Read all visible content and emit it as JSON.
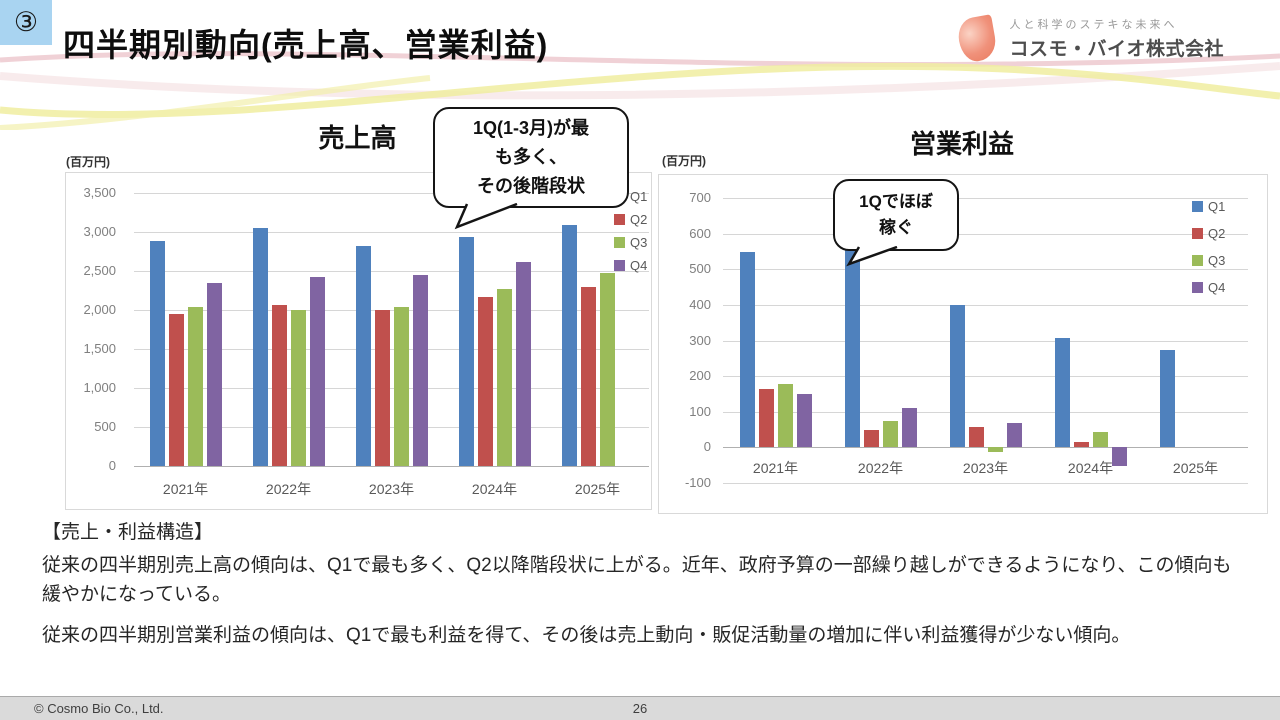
{
  "slide": {
    "badge": "③",
    "title": "四半期別動向(売上高、営業利益)"
  },
  "logo": {
    "tagline": "人と科学のステキな未来へ",
    "company": "コスモ・バイオ株式会社"
  },
  "chart_data": [
    {
      "type": "bar",
      "title": "売上高",
      "unit_label": "(百万円)",
      "categories": [
        "2021年",
        "2022年",
        "2023年",
        "2024年",
        "2025年"
      ],
      "series": [
        {
          "name": "Q1",
          "color": "#4F81BD",
          "values": [
            2880,
            3050,
            2820,
            2940,
            3090
          ]
        },
        {
          "name": "Q2",
          "color": "#C0504D",
          "values": [
            1950,
            2060,
            2000,
            2170,
            2300
          ]
        },
        {
          "name": "Q3",
          "color": "#9BBB59",
          "values": [
            2040,
            2000,
            2040,
            2270,
            2480
          ]
        },
        {
          "name": "Q4",
          "color": "#8064A2",
          "values": [
            2350,
            2420,
            2450,
            2620,
            null
          ]
        }
      ],
      "ylim": [
        0,
        3500
      ],
      "ytick_step": 500,
      "ytick_format": "comma",
      "grid": true,
      "legend_position": "right",
      "annotation": {
        "lines": [
          "1Q(1-3月)が最",
          "も多く、",
          "その後階段状"
        ]
      }
    },
    {
      "type": "bar",
      "title": "営業利益",
      "unit_label": "(百万円)",
      "categories": [
        "2021年",
        "2022年",
        "2023年",
        "2024年",
        "2025年"
      ],
      "series": [
        {
          "name": "Q1",
          "color": "#4F81BD",
          "values": [
            548,
            578,
            400,
            306,
            272
          ]
        },
        {
          "name": "Q2",
          "color": "#C0504D",
          "values": [
            165,
            48,
            56,
            14,
            null
          ]
        },
        {
          "name": "Q3",
          "color": "#9BBB59",
          "values": [
            177,
            74,
            -12,
            44,
            null
          ]
        },
        {
          "name": "Q4",
          "color": "#8064A2",
          "values": [
            151,
            110,
            69,
            -52,
            null
          ]
        }
      ],
      "ylim": [
        -100,
        700
      ],
      "ytick_step": 100,
      "ytick_format": "plain",
      "grid": true,
      "legend_position": "right",
      "annotation": {
        "lines": [
          "1Qでほぼ",
          "稼ぐ"
        ]
      }
    }
  ],
  "notes": {
    "heading": "【売上・利益構造】",
    "paragraphs": [
      "従来の四半期別売上高の傾向は、Q1で最も多く、Q2以降階段状に上がる。近年、政府予算の一部繰り越しができるようになり、この傾向も緩やかになっている。",
      "従来の四半期別営業利益の傾向は、Q1で最も利益を得て、その後は売上動向・販促活動量の増加に伴い利益獲得が少ない傾向。"
    ]
  },
  "footer": {
    "copyright": "©  Cosmo Bio Co., Ltd.",
    "page": "26"
  }
}
